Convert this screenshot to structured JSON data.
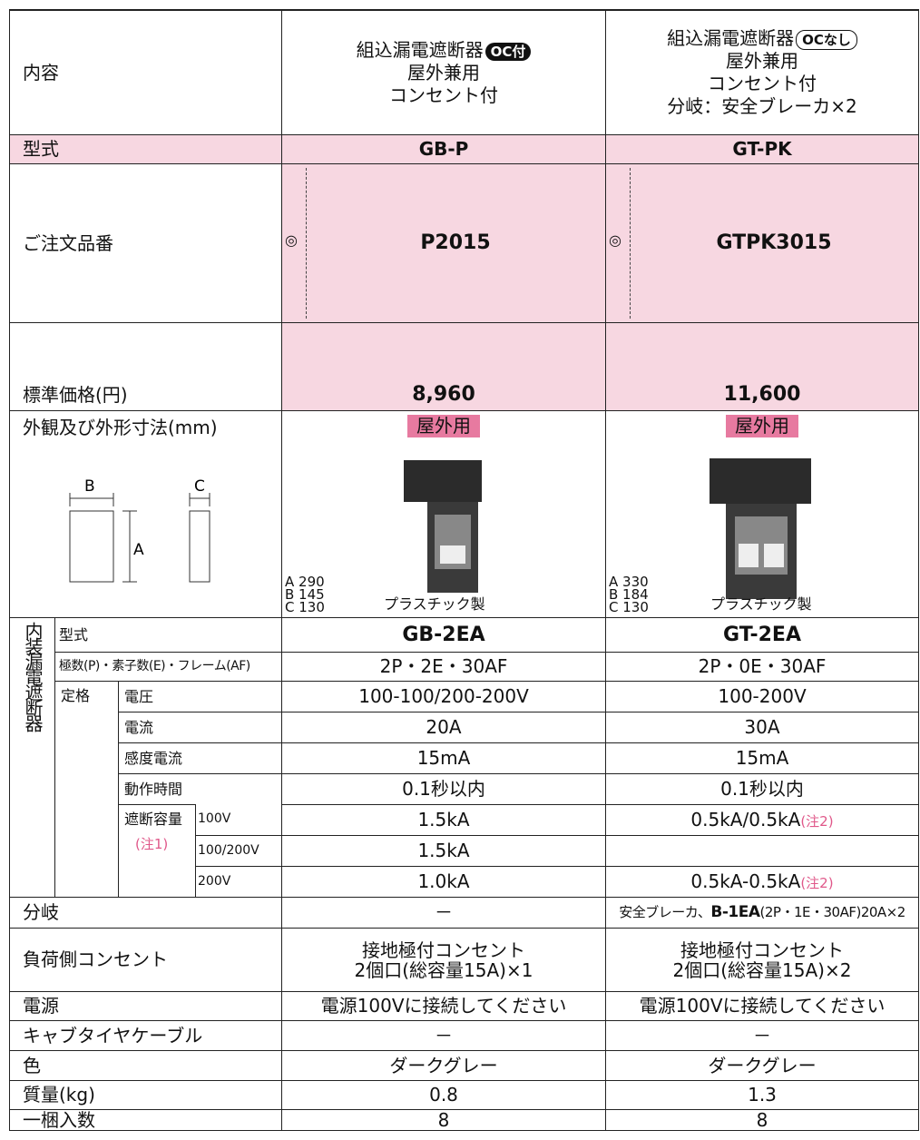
{
  "header": {
    "label": "内容",
    "products": [
      {
        "title": "組込漏電遮断器",
        "badge": "OC付",
        "lines": [
          "屋外兼用",
          "コンセント付"
        ]
      },
      {
        "title": "組込漏電遮断器",
        "badge": "OCなし",
        "lines": [
          "屋外兼用",
          "コンセント付",
          "分岐：安全ブレーカ×2"
        ]
      }
    ]
  },
  "model": {
    "label": "型式",
    "values": [
      "GB-P",
      "GT-PK"
    ]
  },
  "order_number": {
    "label": "ご注文品番",
    "mark": "◎",
    "values": [
      "P2015",
      "GTPK3015"
    ]
  },
  "price": {
    "label": "標準価格(円)",
    "values": [
      "8,960",
      "11,600"
    ]
  },
  "appearance": {
    "label": "外観及び外形寸法(mm)",
    "diagram": {
      "width": "B",
      "depth": "C",
      "height": "A"
    },
    "badge": "屋外用",
    "products": [
      {
        "dimensions": [
          "A 290",
          "B 145",
          "C 130"
        ],
        "material": "プラスチック製"
      },
      {
        "dimensions": [
          "A 330",
          "B 184",
          "C 130"
        ],
        "material": "プラスチック製"
      }
    ]
  },
  "breaker": {
    "label": "内装漏電遮断器",
    "group": "定格",
    "rows": [
      {
        "label": "型式",
        "values": [
          "GB-2EA",
          "GT-2EA"
        ]
      },
      {
        "label": "極数(P)・素子数(E)・フレーム(AF)",
        "values": [
          "2P・2E・30AF",
          "2P・0E・30AF"
        ]
      },
      {
        "label": "電圧",
        "values": [
          "100-100/200-200V",
          "100-200V"
        ]
      },
      {
        "label": "電流",
        "values": [
          "20A",
          "30A"
        ]
      },
      {
        "label": "感度電流",
        "values": [
          "15mA",
          "15mA"
        ]
      },
      {
        "label": "動作時間",
        "values": [
          "0.1秒以内",
          "0.1秒以内"
        ]
      },
      {
        "label": "遮断容量",
        "label_note": "(注1)",
        "sublabel": "100V",
        "values": [
          "1.5kA",
          "0.5kA/0.5kA"
        ],
        "note": "(注2)"
      },
      {
        "sublabel": "100/200V",
        "values": [
          "1.5kA"
        ]
      },
      {
        "sublabel": "200V",
        "values": [
          "1.0kA",
          "0.5kA-0.5kA"
        ],
        "note": "(注2)"
      }
    ]
  },
  "branch": {
    "label": "分岐",
    "values": [
      "－",
      {
        "text": "安全ブレーカ、",
        "model": "B-1EA",
        "spec": "(2P・1E・30AF)20A×2"
      }
    ]
  },
  "outlet": {
    "label": "負荷側コンセント",
    "values": [
      [
        "接地極付コンセント",
        "2個口(総容量15A)×1"
      ],
      [
        "接地極付コンセント",
        "2個口(総容量15A)×2"
      ]
    ]
  },
  "power_source": {
    "label": "電源",
    "values": [
      "電源100Vに接続してください",
      "電源100Vに接続してください"
    ]
  },
  "cabtire_cable": {
    "label": "キャブタイヤケーブル",
    "values": [
      "－",
      "－"
    ]
  },
  "color": {
    "label": "色",
    "values": [
      "ダークグレー",
      "ダークグレー"
    ]
  },
  "mass": {
    "label": "質量(kg)",
    "values": [
      "0.8",
      "1.3"
    ]
  },
  "quantity": {
    "label": "一梱入数",
    "values": [
      "8",
      "8"
    ]
  }
}
